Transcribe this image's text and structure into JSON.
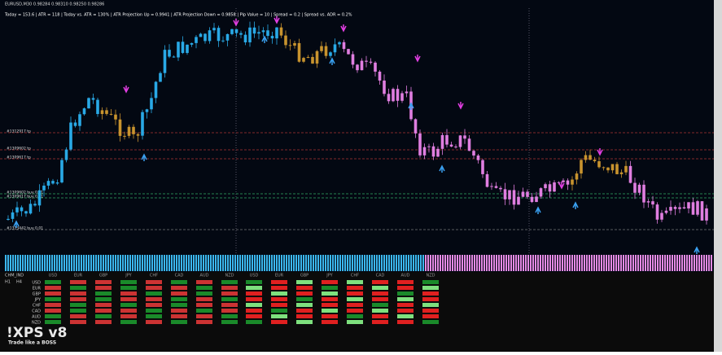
{
  "header": {
    "symbol": "EURUSD,M30  0.98284 0.98310 0.98250 0.98286",
    "stats": "Today = 153.6  |  ATR = 118  |  Today vs. ATR = 130%  |  ATR Projection Up = 0.9941  |  ATR Projection Down = 0.9858  |  Pip Value = 10  |  Spread = 0.2  |  Spread vs. ADR = 0.2%"
  },
  "levels": [
    "#1312917 tp",
    "#1309602 tp",
    "#1309617 tp",
    "#1309602 buy 0.01",
    "#1309617 buy 0.01",
    "#1313442 buy 0.01"
  ],
  "panel": {
    "title": "CHM_IND",
    "timeframes": [
      "H1",
      "H4"
    ],
    "currencies": [
      "USD",
      "EUR",
      "GBP",
      "JPY",
      "CHF",
      "CAD",
      "AUD",
      "NZD"
    ]
  },
  "logo": {
    "title": "!XPS v8",
    "tagline": "Trade like a BOSS"
  }
}
